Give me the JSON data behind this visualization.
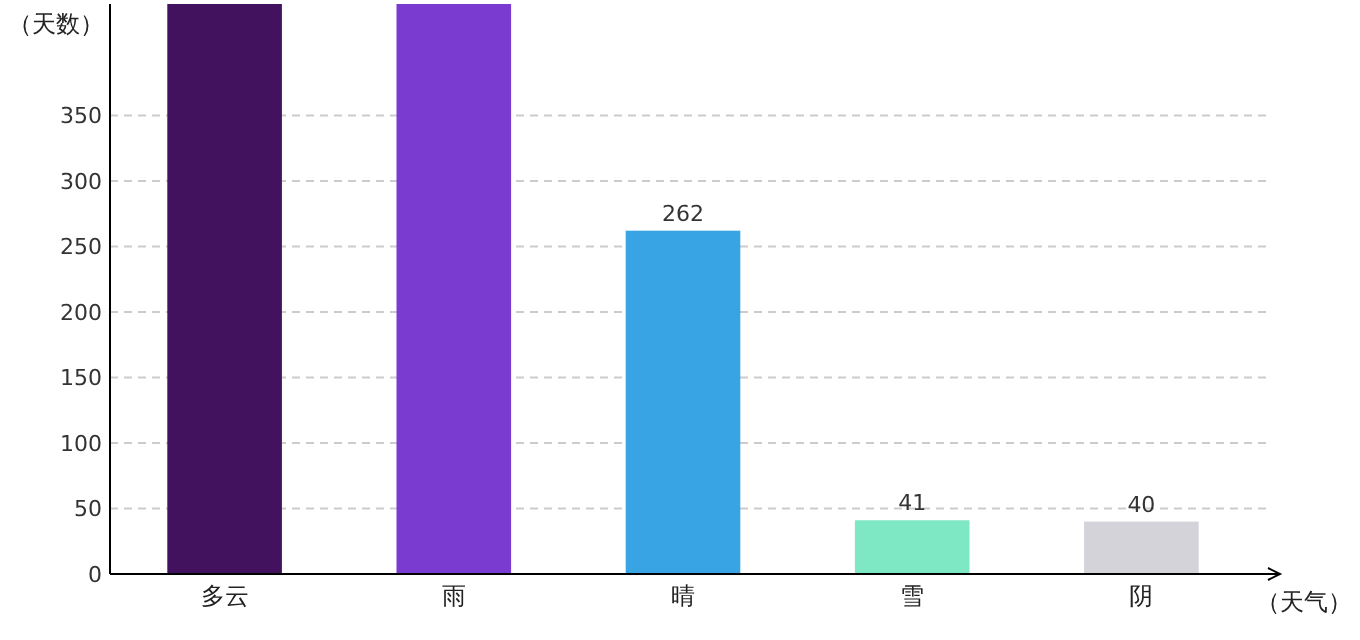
{
  "chart_data": {
    "type": "bar",
    "xlabel": "（天气）",
    "ylabel": "（天数）",
    "categories": [
      "多云",
      "雨",
      "晴",
      "雪",
      "阴"
    ],
    "values": [
      435,
      435,
      262,
      41,
      40
    ],
    "value_labels": [
      null,
      null,
      "262",
      "41",
      "40"
    ],
    "colors": [
      "#43125e",
      "#7a3bd1",
      "#38a4e4",
      "#7ee8c4",
      "#d3d3d9"
    ],
    "ylim": [
      0,
      435
    ],
    "yticks": [
      0,
      50,
      100,
      150,
      200,
      250,
      300,
      350
    ],
    "grid": "y"
  }
}
